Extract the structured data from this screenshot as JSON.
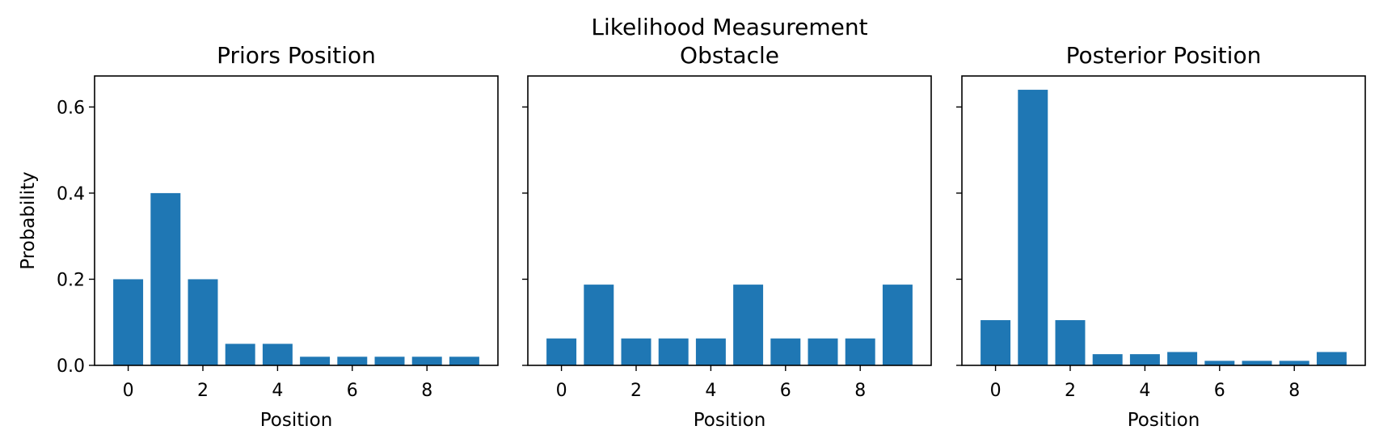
{
  "chart_data": [
    {
      "type": "bar",
      "title": "Priors Position",
      "xlabel": "Position",
      "ylabel": "Probability",
      "x": [
        0,
        1,
        2,
        3,
        4,
        5,
        6,
        7,
        8,
        9
      ],
      "values": [
        0.2,
        0.4,
        0.2,
        0.05,
        0.05,
        0.02,
        0.02,
        0.02,
        0.02,
        0.02
      ],
      "xticks": [
        "0",
        "2",
        "4",
        "6",
        "8"
      ],
      "yticks": [
        "0.0",
        "0.2",
        "0.4",
        "0.6"
      ],
      "xlim": [
        -0.9,
        9.9
      ],
      "ylim": [
        0,
        0.672
      ],
      "color": "#1f77b4"
    },
    {
      "type": "bar",
      "title": "Likelihood Measurement\nObstacle",
      "xlabel": "Position",
      "ylabel": "",
      "x": [
        0,
        1,
        2,
        3,
        4,
        5,
        6,
        7,
        8,
        9
      ],
      "values": [
        0.0625,
        0.1875,
        0.0625,
        0.0625,
        0.0625,
        0.1875,
        0.0625,
        0.0625,
        0.0625,
        0.1875
      ],
      "xticks": [
        "0",
        "2",
        "4",
        "6",
        "8"
      ],
      "yticks": [],
      "xlim": [
        -0.9,
        9.9
      ],
      "ylim": [
        0,
        0.672
      ],
      "color": "#1f77b4"
    },
    {
      "type": "bar",
      "title": "Posterior Position",
      "xlabel": "Position",
      "ylabel": "",
      "x": [
        0,
        1,
        2,
        3,
        4,
        5,
        6,
        7,
        8,
        9
      ],
      "values": [
        0.105,
        0.64,
        0.105,
        0.026,
        0.026,
        0.031,
        0.0105,
        0.0105,
        0.0105,
        0.031
      ],
      "xticks": [
        "0",
        "2",
        "4",
        "6",
        "8"
      ],
      "yticks": [],
      "xlim": [
        -0.9,
        9.9
      ],
      "ylim": [
        0,
        0.672
      ],
      "color": "#1f77b4"
    }
  ],
  "shared": {
    "ytick_values": [
      0.0,
      0.2,
      0.4,
      0.6
    ],
    "xtick_values": [
      0,
      2,
      4,
      6,
      8
    ]
  }
}
